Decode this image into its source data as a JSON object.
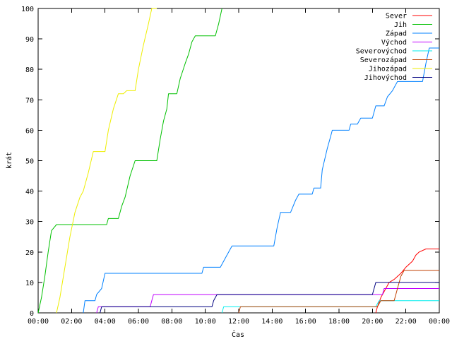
{
  "chart_data": {
    "type": "line",
    "title": "",
    "xlabel": "Čas",
    "ylabel": "krát",
    "xlim": [
      0,
      24
    ],
    "ylim": [
      0,
      100
    ],
    "x_ticks": [
      "00:00",
      "02:00",
      "04:00",
      "06:00",
      "08:00",
      "10:00",
      "12:00",
      "14:00",
      "16:00",
      "18:00",
      "20:00",
      "22:00",
      "00:00"
    ],
    "y_ticks": [
      0,
      10,
      20,
      30,
      40,
      50,
      60,
      70,
      80,
      90,
      100
    ],
    "grid": false,
    "legend_position": "top-right",
    "series": [
      {
        "name": "Sever",
        "color": "#ff0000",
        "points": [
          [
            20.2,
            0
          ],
          [
            20.3,
            2
          ],
          [
            20.5,
            5
          ],
          [
            20.8,
            8
          ],
          [
            21.0,
            10
          ],
          [
            21.3,
            11
          ],
          [
            21.7,
            13
          ],
          [
            22.0,
            15
          ],
          [
            22.4,
            17
          ],
          [
            22.6,
            19
          ],
          [
            22.8,
            20
          ],
          [
            23.2,
            21
          ],
          [
            24.0,
            21
          ]
        ]
      },
      {
        "name": "Jih",
        "color": "#00c000",
        "points": [
          [
            0.0,
            0
          ],
          [
            0.2,
            5
          ],
          [
            0.4,
            12
          ],
          [
            0.6,
            20
          ],
          [
            0.8,
            27
          ],
          [
            1.1,
            29
          ],
          [
            4.1,
            29
          ],
          [
            4.2,
            31
          ],
          [
            4.8,
            31
          ],
          [
            5.0,
            35
          ],
          [
            5.2,
            38
          ],
          [
            5.5,
            45
          ],
          [
            5.8,
            50
          ],
          [
            7.1,
            50
          ],
          [
            7.3,
            57
          ],
          [
            7.5,
            63
          ],
          [
            7.7,
            67
          ],
          [
            7.8,
            72
          ],
          [
            8.3,
            72
          ],
          [
            8.5,
            77
          ],
          [
            8.8,
            82
          ],
          [
            9.0,
            85
          ],
          [
            9.2,
            89
          ],
          [
            9.4,
            91
          ],
          [
            10.6,
            91
          ],
          [
            10.8,
            95
          ],
          [
            11.0,
            100
          ]
        ]
      },
      {
        "name": "Západ",
        "color": "#0080ff",
        "points": [
          [
            2.7,
            0
          ],
          [
            2.8,
            4
          ],
          [
            3.4,
            4
          ],
          [
            3.5,
            6
          ],
          [
            3.8,
            8
          ],
          [
            4.0,
            13
          ],
          [
            9.8,
            13
          ],
          [
            9.9,
            15
          ],
          [
            10.9,
            15
          ],
          [
            11.1,
            17
          ],
          [
            11.3,
            19
          ],
          [
            11.6,
            22
          ],
          [
            14.1,
            22
          ],
          [
            14.3,
            28
          ],
          [
            14.5,
            33
          ],
          [
            15.1,
            33
          ],
          [
            15.4,
            37
          ],
          [
            15.6,
            39
          ],
          [
            16.4,
            39
          ],
          [
            16.5,
            41
          ],
          [
            16.9,
            41
          ],
          [
            17.0,
            47
          ],
          [
            17.3,
            54
          ],
          [
            17.5,
            58
          ],
          [
            17.6,
            60
          ],
          [
            18.6,
            60
          ],
          [
            18.7,
            62
          ],
          [
            19.1,
            62
          ],
          [
            19.3,
            64
          ],
          [
            20.0,
            64
          ],
          [
            20.2,
            68
          ],
          [
            20.7,
            68
          ],
          [
            20.9,
            71
          ],
          [
            21.2,
            73
          ],
          [
            21.5,
            76
          ],
          [
            23.0,
            76
          ],
          [
            23.2,
            82
          ],
          [
            23.4,
            87
          ],
          [
            24.0,
            87
          ]
        ]
      },
      {
        "name": "Východ",
        "color": "#c000ff",
        "points": [
          [
            3.5,
            0
          ],
          [
            3.6,
            2
          ],
          [
            6.7,
            2
          ],
          [
            6.8,
            4
          ],
          [
            6.9,
            6
          ],
          [
            20.6,
            6
          ],
          [
            20.7,
            8
          ],
          [
            24.0,
            8
          ]
        ]
      },
      {
        "name": "Severovýchod",
        "color": "#00eeee",
        "points": [
          [
            11.0,
            0
          ],
          [
            11.1,
            2
          ],
          [
            20.2,
            2
          ],
          [
            20.4,
            4
          ],
          [
            24.0,
            4
          ]
        ]
      },
      {
        "name": "Severozápad",
        "color": "#c04000",
        "points": [
          [
            12.0,
            0
          ],
          [
            12.1,
            2
          ],
          [
            20.3,
            2
          ],
          [
            20.5,
            4
          ],
          [
            21.3,
            4
          ],
          [
            21.5,
            8
          ],
          [
            21.7,
            12
          ],
          [
            21.9,
            14
          ],
          [
            24.0,
            14
          ]
        ]
      },
      {
        "name": "Jihozápad",
        "color": "#eeee00",
        "points": [
          [
            1.1,
            0
          ],
          [
            1.3,
            5
          ],
          [
            1.6,
            15
          ],
          [
            1.9,
            25
          ],
          [
            2.2,
            33
          ],
          [
            2.5,
            38
          ],
          [
            2.7,
            40
          ],
          [
            3.0,
            46
          ],
          [
            3.3,
            53
          ],
          [
            4.0,
            53
          ],
          [
            4.2,
            60
          ],
          [
            4.5,
            67
          ],
          [
            4.8,
            72
          ],
          [
            5.1,
            72
          ],
          [
            5.3,
            73
          ],
          [
            5.8,
            73
          ],
          [
            6.0,
            80
          ],
          [
            6.3,
            88
          ],
          [
            6.6,
            95
          ],
          [
            6.8,
            100
          ],
          [
            7.1,
            100
          ]
        ]
      },
      {
        "name": "Jihovýchod",
        "color": "#000080",
        "points": [
          [
            3.7,
            0
          ],
          [
            3.8,
            2
          ],
          [
            10.4,
            2
          ],
          [
            10.5,
            4
          ],
          [
            10.7,
            6
          ],
          [
            20.0,
            6
          ],
          [
            20.2,
            10
          ],
          [
            24.0,
            10
          ]
        ]
      }
    ]
  }
}
